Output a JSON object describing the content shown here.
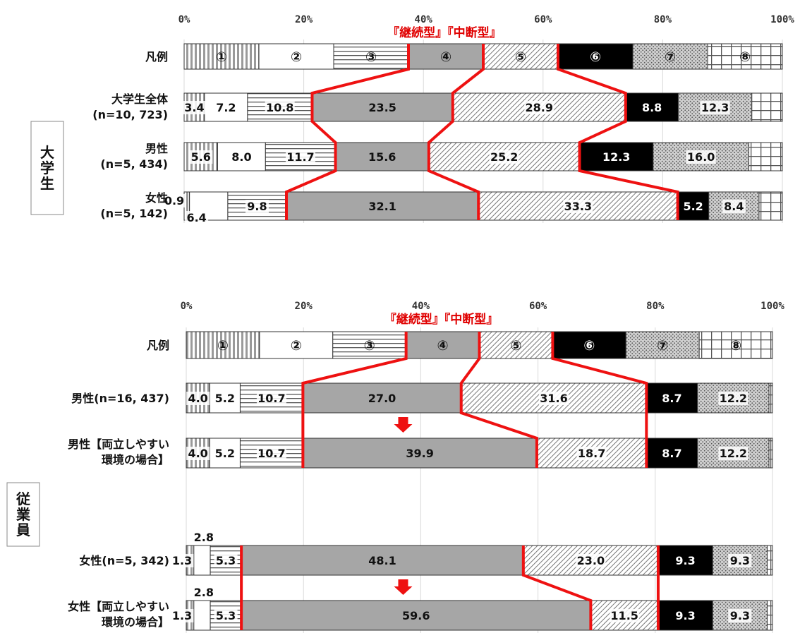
{
  "chart_data": [
    {
      "type": "bar",
      "orientation": "horizontal",
      "stacked": true,
      "group_label": "大学生",
      "title": "『継続型』『中断型』",
      "x_ticks": [
        "0%",
        "20%",
        "40%",
        "60%",
        "80%",
        "100%"
      ],
      "xlim": [
        0,
        100
      ],
      "legend": {
        "label": "凡例",
        "items": [
          "①",
          "②",
          "③",
          "④",
          "⑤",
          "⑥",
          "⑦",
          "⑧"
        ]
      },
      "rows": [
        {
          "label": "大学生全体",
          "sublabel": "(n=10, 723)",
          "values": [
            3.4,
            7.2,
            10.8,
            23.5,
            28.9,
            8.8,
            12.3,
            5.1
          ],
          "labels": [
            "3.4",
            "7.2",
            "10.8",
            "23.5",
            "28.9",
            "8.8",
            "12.3",
            ""
          ]
        },
        {
          "label": "男性",
          "sublabel": "(n=5, 434)",
          "values": [
            5.6,
            8.0,
            11.7,
            15.6,
            25.2,
            12.3,
            16.0,
            5.6
          ],
          "labels": [
            "5.6",
            "8.0",
            "11.7",
            "15.6",
            "25.2",
            "12.3",
            "16.0",
            ""
          ]
        },
        {
          "label": "女性",
          "sublabel": "(n=5, 142)",
          "values": [
            0.9,
            6.4,
            9.8,
            32.1,
            33.3,
            5.2,
            8.4,
            3.9
          ],
          "labels": [
            "0.9",
            "6.4",
            "9.8",
            "32.1",
            "33.3",
            "5.2",
            "8.4",
            ""
          ]
        }
      ]
    },
    {
      "type": "bar",
      "orientation": "horizontal",
      "stacked": true,
      "group_label": "従業員",
      "title": "『継続型』『中断型』",
      "x_ticks": [
        "0%",
        "20%",
        "40%",
        "60%",
        "80%",
        "100%"
      ],
      "xlim": [
        0,
        100
      ],
      "legend": {
        "label": "凡例",
        "items": [
          "①",
          "②",
          "③",
          "④",
          "⑤",
          "⑥",
          "⑦",
          "⑧"
        ]
      },
      "rows": [
        {
          "label": "男性(n=16, 437)",
          "sublabel": "",
          "values": [
            4.0,
            5.2,
            10.7,
            27.0,
            31.6,
            8.7,
            12.2,
            0.6
          ],
          "labels": [
            "4.0",
            "5.2",
            "10.7",
            "27.0",
            "31.6",
            "8.7",
            "12.2",
            ""
          ]
        },
        {
          "label": "男性【両立しやすい",
          "sublabel": "環境の場合】",
          "values": [
            4.0,
            5.2,
            10.7,
            39.9,
            18.7,
            8.7,
            12.2,
            0.6
          ],
          "labels": [
            "4.0",
            "5.2",
            "10.7",
            "39.9",
            "18.7",
            "8.7",
            "12.2",
            ""
          ]
        },
        {
          "label": "女性(n=5, 342)",
          "sublabel": "",
          "values": [
            1.3,
            2.8,
            5.3,
            48.1,
            23.0,
            9.3,
            9.3,
            0.9
          ],
          "labels": [
            "1.3",
            "2.8",
            "5.3",
            "48.1",
            "23.0",
            "9.3",
            "9.3",
            ""
          ]
        },
        {
          "label": "女性【両立しやすい",
          "sublabel": "環境の場合】",
          "values": [
            1.3,
            2.8,
            5.3,
            59.6,
            11.5,
            9.3,
            9.3,
            0.9
          ],
          "labels": [
            "1.3",
            "2.8",
            "5.3",
            "59.6",
            "11.5",
            "9.3",
            "9.3",
            ""
          ]
        }
      ]
    }
  ],
  "colors": {
    "highlight_line": "#ee1111",
    "seg4_fill": "#a6a6a6",
    "seg6_fill": "#000000",
    "arrow": "#ee1111"
  }
}
